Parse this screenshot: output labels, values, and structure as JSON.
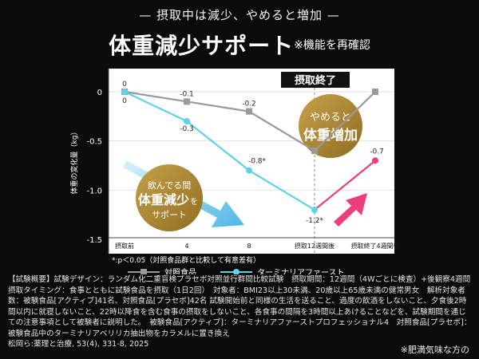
{
  "header": {
    "subtitle": "— 摂取中は減少、やめると増加 —",
    "title": "体重減少サポート",
    "title_note": "※機能を再確認"
  },
  "chart_data": {
    "type": "line",
    "ylabel": "体重の変化量（kg）",
    "ylim": [
      -1.5,
      0
    ],
    "yticks": [
      0,
      -0.5,
      -1.0,
      -1.5
    ],
    "ytick_labels": [
      "0",
      "-0.5",
      "-1.0",
      "-1.5"
    ],
    "categories": [
      "摂取前",
      "4",
      "8",
      "摂取12週間後",
      "摂取終了4週間後"
    ],
    "series": [
      {
        "name": "対照食品",
        "color": "#9a9a9a",
        "values": [
          0,
          -0.1,
          -0.2,
          -0.6,
          0
        ],
        "labels": [
          "0",
          "-0.1",
          "-0.2",
          "",
          ""
        ]
      },
      {
        "name": "ターミナリアファースト",
        "color": "#5fd3e6",
        "values": [
          0,
          -0.3,
          -0.8,
          -1.2,
          -0.7
        ],
        "labels": [
          "0",
          "-0.3",
          "-0.8*",
          "-1.2*",
          "-0.7"
        ]
      }
    ],
    "significance_note": "*:p＜0.05（対照食品群と比較して有意差有）",
    "annotations": {
      "stop_label": "摂取終了",
      "stop_badge_line1": "やめると",
      "stop_badge_line2": "体重増加",
      "drinking_line1": "飲んでる間",
      "drinking_line2": "体重減少",
      "drinking_suffix": "を",
      "drinking_line3": "サポート"
    }
  },
  "summary": {
    "text": "【試験概要】試験デザイン：ランダム化二重盲検プラセボ対照並行群間比較試験　摂取期間：12週間（4Wごとに検査）+後観察4週間　摂取タイミング：食事とともに試験食品を摂取（1日2回）　対象者：BMI23以上30未満、20歳以上65歳未満の健常男女　解析対象者数：被験食品[アクティブ]41名、対照食品[プラセボ]42名 試験開始前と同様の生活を送ること、過度の飲酒をしないこと、夕食後2時間以内に就寝しないこと、22時以降食を含む食事の摂取をしないこと、各食事の間隔を3時間以上あけることなどを、試験期間を通じての注意事項として被験者に説明した。　被験食品[アクティブ]：ターミナリアファーストプロフェッショナル4　対照食品[プラセボ]：被験食品中のターミナリアベリリカ抽出物をカラメルに置き換え",
    "citation": "松岡ら:薬理と治療, 53(4), 331-8, 2025"
  },
  "footnote": "※肥満気味な方の"
}
